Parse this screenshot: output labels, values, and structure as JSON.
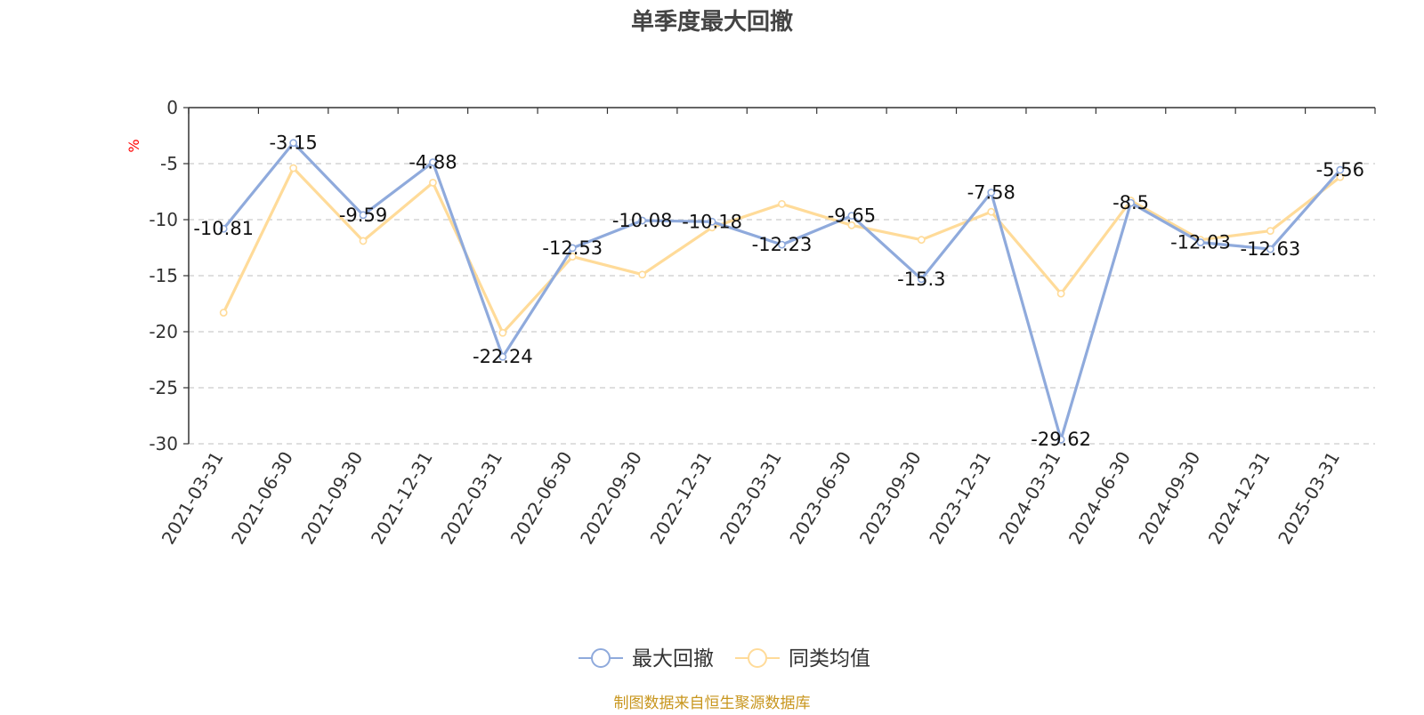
{
  "chart_data": {
    "type": "line",
    "title": "单季度最大回撤",
    "ylabel": "%",
    "ylim": [
      -30,
      0
    ],
    "yticks": [
      0,
      -5,
      -10,
      -15,
      -20,
      -25,
      -30
    ],
    "grid": true,
    "legend_position": "bottom",
    "categories": [
      "2021-03-31",
      "2021-06-30",
      "2021-09-30",
      "2021-12-31",
      "2022-03-31",
      "2022-06-30",
      "2022-09-30",
      "2022-12-31",
      "2023-03-31",
      "2023-06-30",
      "2023-09-30",
      "2023-12-31",
      "2024-03-31",
      "2024-06-30",
      "2024-09-30",
      "2024-12-31",
      "2025-03-31"
    ],
    "series": [
      {
        "name": "最大回撤",
        "color": "#8faadc",
        "values": [
          -10.81,
          -3.15,
          -9.59,
          -4.88,
          -22.24,
          -12.53,
          -10.08,
          -10.18,
          -12.23,
          -9.65,
          -15.3,
          -7.58,
          -29.62,
          -8.5,
          -12.03,
          -12.63,
          -5.56
        ],
        "labels": [
          "-10.81",
          "-3.15",
          "-9.59",
          "-4.88",
          "-22.24",
          "-12.53",
          "-10.08",
          "-10.18",
          "-12.23",
          "-9.65",
          "-15.3",
          "-7.58",
          "-29.62",
          "-8.5",
          "-12.03",
          "-12.63",
          "-5.56"
        ]
      },
      {
        "name": "同类均值",
        "color": "#ffdb99",
        "values": [
          -18.3,
          -5.4,
          -11.9,
          -6.7,
          -20.1,
          -13.3,
          -14.9,
          -10.7,
          -8.6,
          -10.5,
          -11.8,
          -9.3,
          -16.6,
          -8.3,
          -11.8,
          -11.0,
          -6.2
        ]
      }
    ],
    "source_note": "制图数据来自恒生聚源数据库"
  }
}
